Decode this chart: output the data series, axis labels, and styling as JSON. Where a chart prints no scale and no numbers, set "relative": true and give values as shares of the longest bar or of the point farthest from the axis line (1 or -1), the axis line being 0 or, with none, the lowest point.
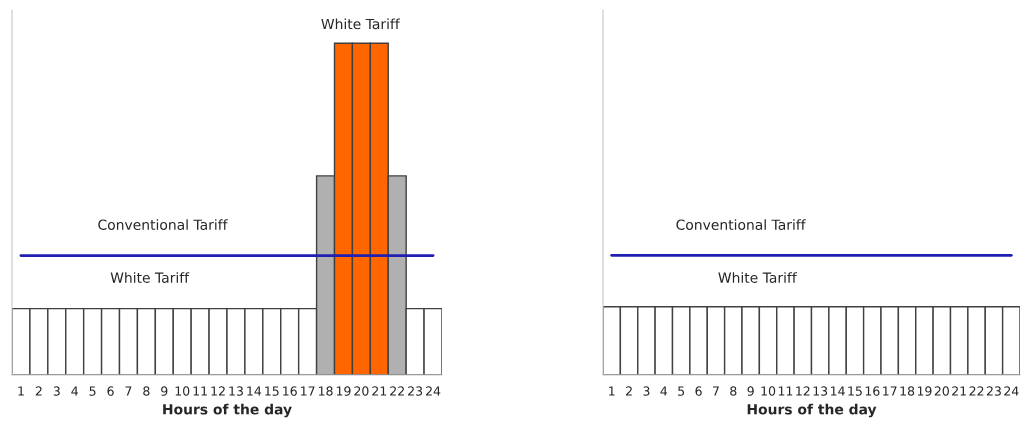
{
  "chart_data": [
    {
      "type": "bar",
      "relative": true,
      "xlabel": "Hours of the day",
      "categories": [
        "1",
        "2",
        "3",
        "4",
        "5",
        "6",
        "7",
        "8",
        "9",
        "10",
        "11",
        "12",
        "13",
        "14",
        "15",
        "16",
        "17",
        "18",
        "19",
        "20",
        "21",
        "22",
        "23",
        "24"
      ],
      "series": [
        {
          "colors": [
            "#ffffff",
            "#ffffff",
            "#ffffff",
            "#ffffff",
            "#ffffff",
            "#ffffff",
            "#ffffff",
            "#ffffff",
            "#ffffff",
            "#ffffff",
            "#ffffff",
            "#ffffff",
            "#ffffff",
            "#ffffff",
            "#ffffff",
            "#ffffff",
            "#ffffff",
            "#b0b0b0",
            "#ff6600",
            "#ff6600",
            "#ff6600",
            "#b0b0b0",
            "#ffffff",
            "#ffffff"
          ],
          "values": [
            0.2,
            0.2,
            0.2,
            0.2,
            0.2,
            0.2,
            0.2,
            0.2,
            0.2,
            0.2,
            0.2,
            0.2,
            0.2,
            0.2,
            0.2,
            0.2,
            0.2,
            0.6,
            1,
            1,
            1,
            0.6,
            0.2,
            0.2
          ]
        },
        {
          "type": "line",
          "color": "#1f1fb4",
          "values": [
            0.36,
            0.36,
            0.36,
            0.36,
            0.36,
            0.36,
            0.36,
            0.36,
            0.36,
            0.36,
            0.36,
            0.36,
            0.36,
            0.36,
            0.36,
            0.36,
            0.36,
            0.36,
            0.36,
            0.36,
            0.36,
            0.36,
            0.36,
            0.36
          ]
        }
      ],
      "annotations": [
        "White Tariff",
        "Conventional Tariff",
        "White Tariff"
      ]
    },
    {
      "type": "bar",
      "relative": true,
      "xlabel": "Hours of the day",
      "categories": [
        "1",
        "2",
        "3",
        "4",
        "5",
        "6",
        "7",
        "8",
        "9",
        "10",
        "11",
        "12",
        "13",
        "14",
        "15",
        "16",
        "17",
        "18",
        "19",
        "20",
        "21",
        "22",
        "23",
        "24"
      ],
      "series": [
        {
          "color": "#ffffff",
          "values": [
            0.57,
            0.57,
            0.57,
            0.57,
            0.57,
            0.57,
            0.57,
            0.57,
            0.57,
            0.57,
            0.57,
            0.57,
            0.57,
            0.57,
            0.57,
            0.57,
            0.57,
            0.57,
            0.57,
            0.57,
            0.57,
            0.57,
            0.57,
            0.57
          ]
        },
        {
          "type": "line",
          "color": "#1f1fb4",
          "values": [
            1,
            1,
            1,
            1,
            1,
            1,
            1,
            1,
            1,
            1,
            1,
            1,
            1,
            1,
            1,
            1,
            1,
            1,
            1,
            1,
            1,
            1,
            1,
            1
          ]
        }
      ],
      "annotations": [
        "Conventional Tariff",
        "White Tariff"
      ]
    }
  ]
}
